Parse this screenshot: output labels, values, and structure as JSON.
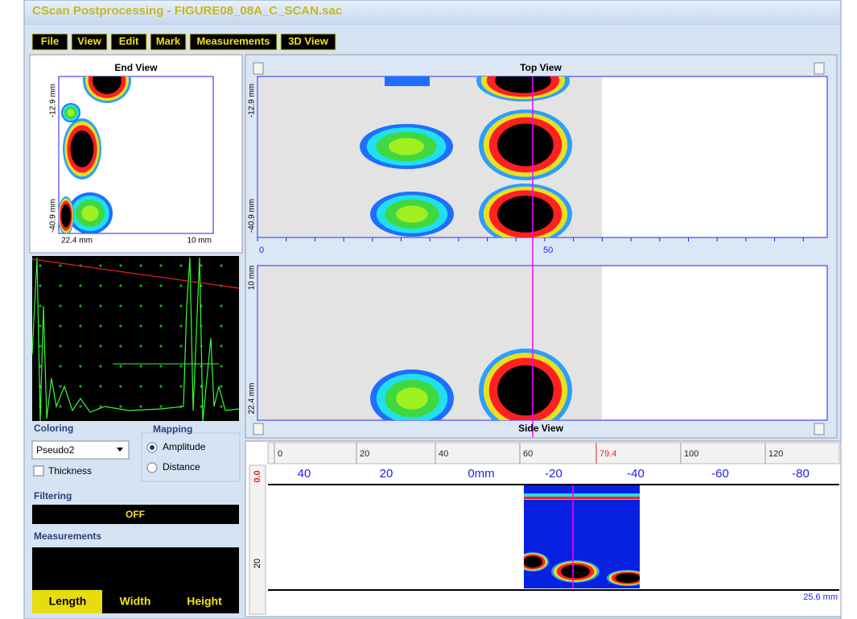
{
  "window": {
    "title": "CScan Postprocessing - FIGURE08_08A_C_SCAN.sac"
  },
  "menu": [
    "File",
    "View",
    "Edit",
    "Mark",
    "Measurements",
    "3D View"
  ],
  "end_view": {
    "title": "End View",
    "y_labels": [
      "-12.9 mm",
      "-40.9 mm"
    ],
    "x_labels": [
      "22.4 mm",
      "10 mm"
    ]
  },
  "top_view": {
    "title": "Top View",
    "y_labels": [
      "-12.9 mm",
      "-40.9 mm"
    ],
    "x_labels": [
      "0",
      "50"
    ]
  },
  "side_view": {
    "title": "Side View",
    "y_labels": [
      "10 mm",
      "22.4 mm"
    ]
  },
  "controls": {
    "coloring": {
      "label": "Coloring",
      "value": "Pseudo2",
      "thickness": "Thickness"
    },
    "mapping": {
      "label": "Mapping",
      "options": [
        "Amplitude",
        "Distance"
      ]
    },
    "filtering": {
      "label": "Filtering",
      "value": "OFF"
    },
    "measurements": {
      "label": "Measurements",
      "buttons": [
        "Length",
        "Width",
        "Height"
      ]
    }
  },
  "bscan": {
    "ruler_top": [
      "0",
      "20",
      "40",
      "60",
      "79.4",
      "100",
      "120"
    ],
    "ruler_scale": [
      "40",
      "20",
      "0mm",
      "-20",
      "-40",
      "-60",
      "-80"
    ],
    "depth_labels": [
      "0.0",
      "20"
    ],
    "depth_end": "25.6 mm"
  }
}
